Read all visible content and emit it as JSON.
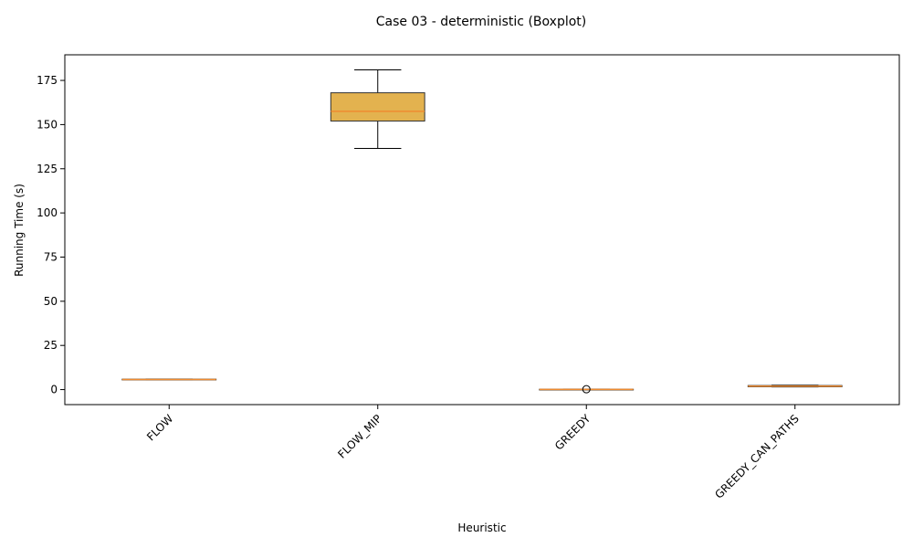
{
  "chart_data": {
    "type": "boxplot",
    "title": "Case 03 - deterministic (Boxplot)",
    "xlabel": "Heuristic",
    "ylabel": "Running Time (s)",
    "ylim": [
      -8.5,
      189.5
    ],
    "yticks": [
      0,
      25,
      50,
      75,
      100,
      125,
      150,
      175
    ],
    "grid": false,
    "categories": [
      "FLOW",
      "FLOW_MIP",
      "GREEDY",
      "GREEDY_CAN_PATHS"
    ],
    "boxes": [
      {
        "category": "FLOW",
        "whisker_low": 5.6,
        "q1": 5.6,
        "median": 5.7,
        "q3": 5.9,
        "whisker_high": 6.0,
        "outliers": []
      },
      {
        "category": "FLOW_MIP",
        "whisker_low": 136.5,
        "q1": 152.0,
        "median": 157.5,
        "q3": 168.0,
        "whisker_high": 181.0,
        "outliers": []
      },
      {
        "category": "GREEDY",
        "whisker_low": 0.0,
        "q1": 0.1,
        "median": 0.1,
        "q3": 0.2,
        "whisker_high": 0.3,
        "outliers": [
          0.2
        ]
      },
      {
        "category": "GREEDY_CAN_PATHS",
        "whisker_low": 1.5,
        "q1": 1.6,
        "median": 2.0,
        "q3": 2.3,
        "whisker_high": 2.5,
        "outliers": []
      }
    ],
    "colors": {
      "box_fill": "#e3b24f",
      "box_edge": "#333333",
      "median": "#f08b30",
      "whisker": "#000000"
    }
  }
}
